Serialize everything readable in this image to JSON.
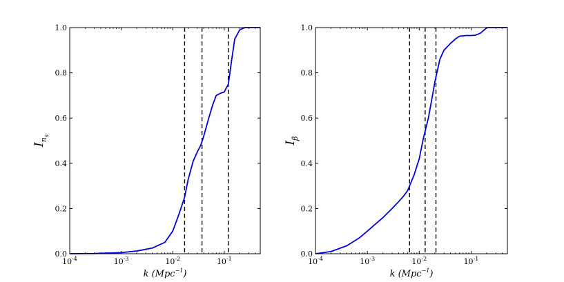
{
  "chart_data": [
    {
      "type": "line",
      "xlabel": "k (Mpc⁻¹)",
      "ylabel": "I_{n_s}",
      "ylabel_main": "I",
      "ylabel_sub": "n",
      "ylabel_subsub": "s",
      "xscale": "log",
      "xlim": [
        0.0001,
        0.5
      ],
      "ylim": [
        0.0,
        1.0
      ],
      "grid": false,
      "x_ticks": [
        0.0001,
        0.001,
        0.01,
        0.1
      ],
      "x_tick_labels": [
        {
          "base": "10",
          "exp": "-4"
        },
        {
          "base": "10",
          "exp": "-3"
        },
        {
          "base": "10",
          "exp": "-2"
        },
        {
          "base": "10",
          "exp": "-1"
        }
      ],
      "y_ticks": [
        "0.0",
        "0.2",
        "0.4",
        "0.6",
        "0.8",
        "1.0"
      ],
      "series": [
        {
          "color": "#0000dd",
          "x": [
            0.0001,
            0.0003,
            0.001,
            0.002,
            0.004,
            0.007,
            0.01,
            0.013,
            0.017,
            0.02,
            0.025,
            0.03,
            0.035,
            0.04,
            0.05,
            0.06,
            0.07,
            0.085,
            0.1,
            0.12,
            0.14,
            0.16,
            0.2,
            0.25,
            0.3,
            0.4,
            0.5
          ],
          "y": [
            0.0,
            0.001,
            0.005,
            0.012,
            0.025,
            0.05,
            0.1,
            0.17,
            0.25,
            0.33,
            0.41,
            0.45,
            0.48,
            0.52,
            0.6,
            0.66,
            0.7,
            0.71,
            0.715,
            0.75,
            0.86,
            0.95,
            0.99,
            1.0,
            1.0,
            1.0,
            1.0
          ]
        }
      ],
      "vlines": [
        0.017,
        0.037,
        0.12
      ],
      "vline_style": "dashed"
    },
    {
      "type": "line",
      "xlabel": "k (Mpc⁻¹)",
      "ylabel": "I_β",
      "ylabel_main": "I",
      "ylabel_sub": "β",
      "ylabel_subsub": "",
      "xscale": "log",
      "xlim": [
        0.0001,
        0.5
      ],
      "ylim": [
        0.0,
        1.0
      ],
      "grid": false,
      "x_ticks": [
        0.0001,
        0.001,
        0.01,
        0.1
      ],
      "x_tick_labels": [
        {
          "base": "10",
          "exp": "-4"
        },
        {
          "base": "10",
          "exp": "-3"
        },
        {
          "base": "10",
          "exp": "-2"
        },
        {
          "base": "10",
          "exp": "-1"
        }
      ],
      "y_ticks": [
        "0.0",
        "0.2",
        "0.4",
        "0.6",
        "0.8",
        "1.0"
      ],
      "series": [
        {
          "color": "#0000dd",
          "x": [
            0.0001,
            0.0002,
            0.0004,
            0.0007,
            0.001,
            0.0015,
            0.002,
            0.003,
            0.004,
            0.005,
            0.006,
            0.008,
            0.01,
            0.012,
            0.015,
            0.018,
            0.02,
            0.025,
            0.03,
            0.04,
            0.05,
            0.06,
            0.08,
            0.1,
            0.12,
            0.15,
            0.18,
            0.2,
            0.25,
            0.3,
            0.4,
            0.5
          ],
          "y": [
            0.0,
            0.01,
            0.035,
            0.07,
            0.1,
            0.135,
            0.16,
            0.2,
            0.23,
            0.255,
            0.28,
            0.35,
            0.42,
            0.51,
            0.6,
            0.7,
            0.76,
            0.86,
            0.9,
            0.93,
            0.95,
            0.962,
            0.965,
            0.965,
            0.966,
            0.975,
            0.99,
            1.0,
            1.0,
            1.0,
            1.0,
            1.0
          ]
        }
      ],
      "vlines": [
        0.0065,
        0.013,
        0.021
      ],
      "vline_style": "dashed"
    }
  ]
}
